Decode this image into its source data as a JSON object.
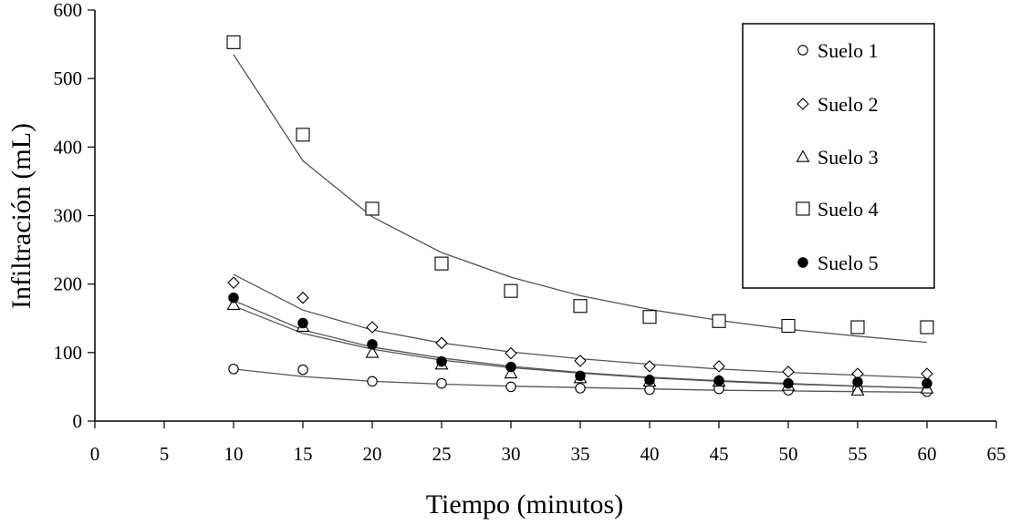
{
  "chart_data": {
    "type": "scatter",
    "title": "",
    "xlabel": "Tiempo (minutos)",
    "ylabel": "Infiltración (mL)",
    "xlim": [
      0,
      65
    ],
    "ylim": [
      0,
      600
    ],
    "xticks": [
      0,
      5,
      10,
      15,
      20,
      25,
      30,
      35,
      40,
      45,
      50,
      55,
      60,
      65
    ],
    "yticks": [
      0,
      100,
      200,
      300,
      400,
      500,
      600
    ],
    "grid": false,
    "legend_position": "top-right",
    "x": [
      10,
      15,
      20,
      25,
      30,
      35,
      40,
      45,
      50,
      55,
      60
    ],
    "series": [
      {
        "name": "Suelo 1",
        "marker": "open-circle",
        "values": [
          76,
          75,
          58,
          55,
          50,
          48,
          46,
          47,
          45,
          47,
          43
        ],
        "fit": [
          76,
          65,
          58,
          54,
          51,
          49,
          47,
          45,
          44,
          43,
          42
        ]
      },
      {
        "name": "Suelo 2",
        "marker": "open-diamond",
        "values": [
          202,
          180,
          137,
          114,
          99,
          88,
          80,
          80,
          72,
          69,
          69
        ],
        "fit": [
          214,
          162,
          133,
          114,
          101,
          91,
          83,
          76,
          71,
          67,
          63
        ]
      },
      {
        "name": "Suelo 3",
        "marker": "open-triangle",
        "values": [
          170,
          138,
          100,
          83,
          70,
          63,
          58,
          58,
          52,
          45,
          48
        ],
        "fit": [
          168,
          128,
          105,
          89,
          78,
          70,
          63,
          58,
          54,
          51,
          48
        ]
      },
      {
        "name": "Suelo 4",
        "marker": "open-square",
        "values": [
          553,
          418,
          310,
          230,
          190,
          168,
          152,
          146,
          139,
          137,
          137
        ],
        "fit": [
          535,
          380,
          298,
          246,
          210,
          183,
          163,
          147,
          134,
          124,
          115
        ]
      },
      {
        "name": "Suelo 5",
        "marker": "filled-circle",
        "values": [
          180,
          143,
          112,
          87,
          79,
          66,
          60,
          59,
          55,
          57,
          55
        ],
        "fit": [
          176,
          133,
          108,
          92,
          80,
          71,
          64,
          59,
          55,
          51,
          48
        ]
      }
    ]
  }
}
